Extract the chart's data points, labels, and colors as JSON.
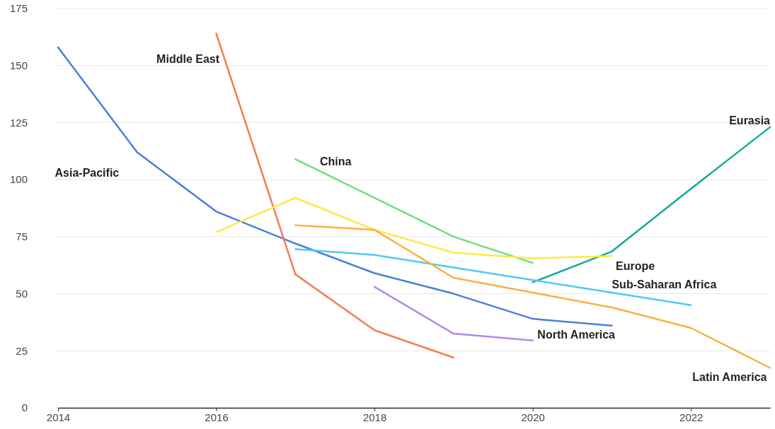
{
  "chart_data": {
    "type": "line",
    "x": [
      2014,
      2015,
      2016,
      2017,
      2018,
      2019,
      2020,
      2021,
      2022,
      2023
    ],
    "xlim": [
      2014,
      2023
    ],
    "xticks": [
      2014,
      2016,
      2018,
      2020,
      2022
    ],
    "ylim": [
      0,
      175
    ],
    "yticks": [
      0,
      25,
      50,
      75,
      100,
      125,
      150,
      175
    ],
    "grid": "y",
    "line_style": "solid",
    "marker": "none",
    "series": [
      {
        "name": "Asia-Pacific",
        "color": "#4a7fd8",
        "values": [
          158,
          112,
          86,
          72,
          59,
          50,
          39,
          36,
          null,
          null
        ]
      },
      {
        "name": "Middle East",
        "color": "#f97a52",
        "values": [
          null,
          null,
          164,
          58.5,
          34,
          22,
          null,
          null,
          null,
          null
        ]
      },
      {
        "name": "China",
        "color": "#6ee07c",
        "values": [
          null,
          null,
          null,
          109,
          92,
          75,
          63.5,
          null,
          null,
          null
        ]
      },
      {
        "name": "Eurasia",
        "color": "#13a89a",
        "values": [
          null,
          null,
          null,
          null,
          null,
          null,
          55,
          68.5,
          96,
          123
        ]
      },
      {
        "name": "Europe",
        "color": "#fce84a",
        "values": [
          null,
          null,
          77,
          92,
          78,
          68,
          65.5,
          66.5,
          null,
          null
        ]
      },
      {
        "name": "Sub-Saharan Africa",
        "color": "#4fc9f5",
        "values": [
          null,
          null,
          null,
          69.5,
          67,
          61.5,
          56,
          50.5,
          45,
          null
        ]
      },
      {
        "name": "North America",
        "color": "#b18be8",
        "values": [
          null,
          null,
          null,
          null,
          53,
          32.5,
          29.5,
          null,
          null,
          null
        ]
      },
      {
        "name": "Latin America",
        "color": "#fbb040",
        "values": [
          null,
          null,
          null,
          80,
          78,
          57,
          50.5,
          44,
          35,
          17.5
        ]
      }
    ]
  }
}
